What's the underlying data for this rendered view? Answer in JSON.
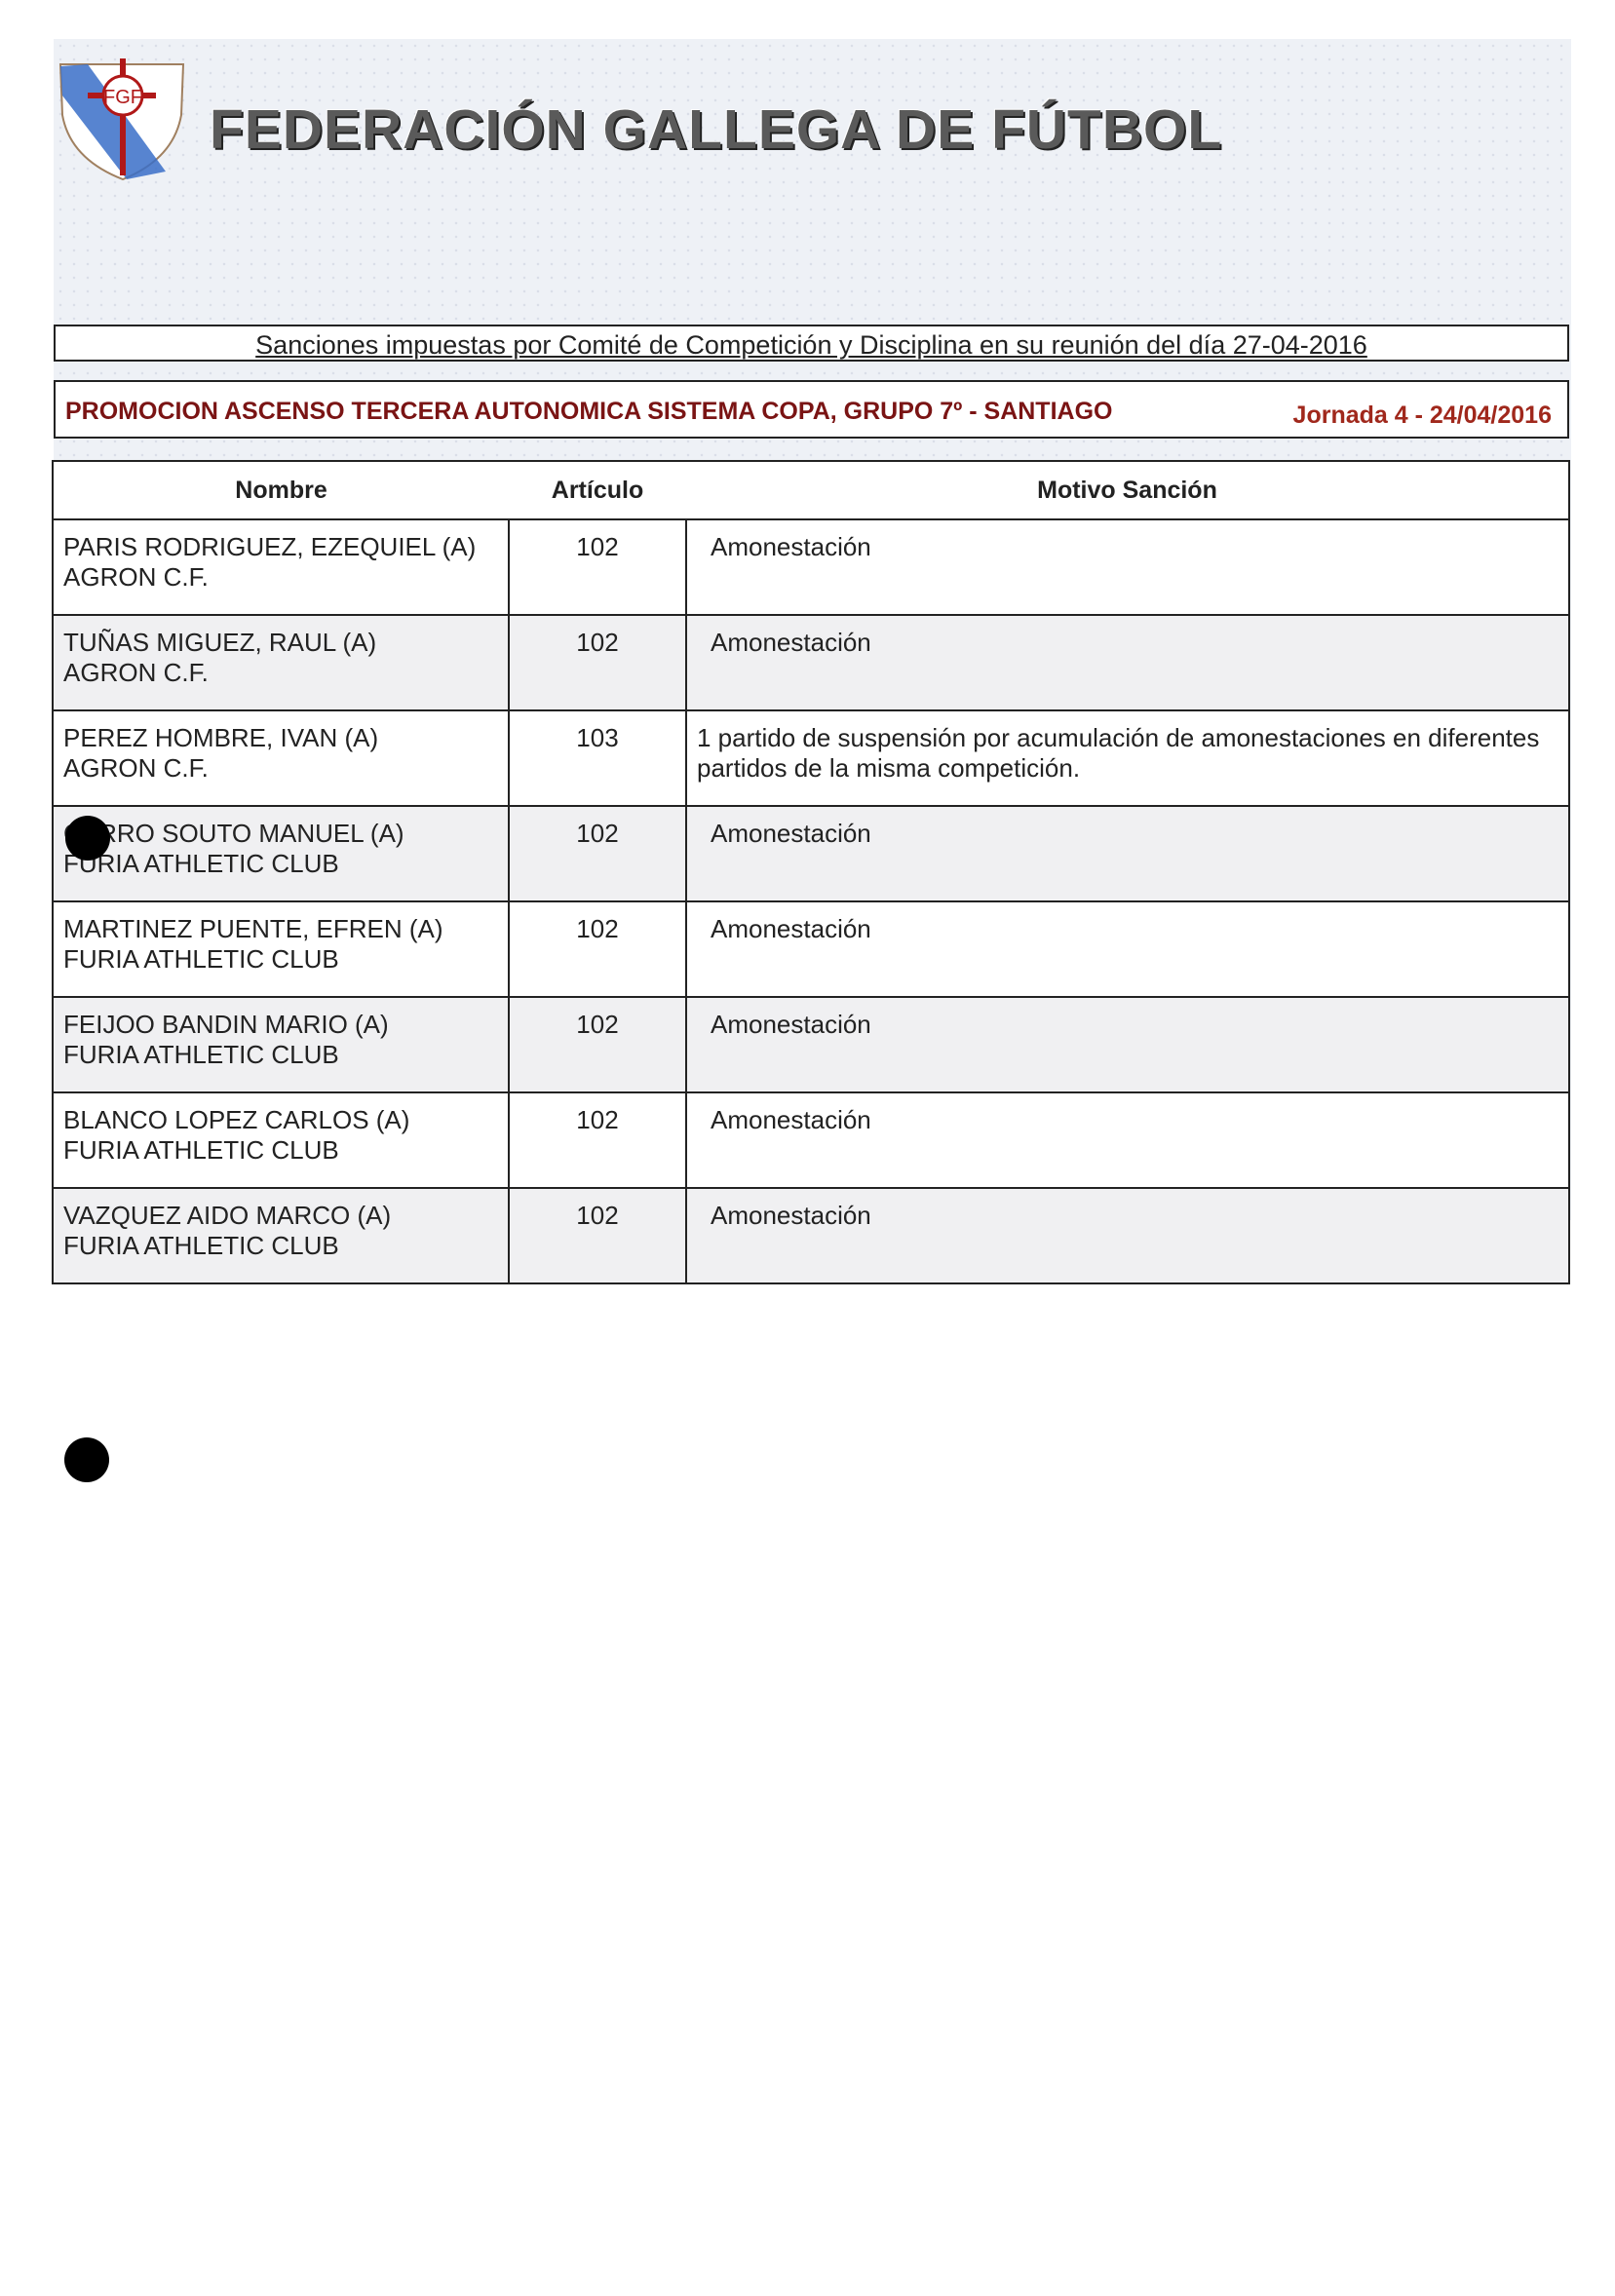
{
  "header": {
    "logo_text": "FGF",
    "title": "FEDERACIÓN GALLEGA DE FÚTBOL"
  },
  "meeting_title": "Sanciones impuestas por Comité de Competición y Disciplina en su reunión del día 27-04-2016",
  "competition": {
    "name": "PROMOCION ASCENSO TERCERA AUTONOMICA SISTEMA COPA,  GRUPO 7º - SANTIAGO",
    "round": "Jornada 4 - 24/04/2016"
  },
  "colors": {
    "competition": "#7a1414",
    "round": "#a0281c"
  },
  "table": {
    "headers": [
      "Nombre",
      "Artículo",
      "Motivo Sanción"
    ],
    "rows": [
      {
        "name": "PARIS RODRIGUEZ, EZEQUIEL (A)",
        "club": "AGRON C.F.",
        "article": "102",
        "reason": "Amonestación"
      },
      {
        "name": "TUÑAS MIGUEZ, RAUL (A)",
        "club": "AGRON C.F.",
        "article": "102",
        "reason": "Amonestación"
      },
      {
        "name": "PEREZ HOMBRE, IVAN (A)",
        "club": "AGRON C.F.",
        "article": "103",
        "reason": "1 partido de suspensión por acumulación de amonestaciones en diferentes partidos de la misma competición."
      },
      {
        "name": "CARRO SOUTO MANUEL (A)",
        "club": "FURIA ATHLETIC CLUB",
        "article": "102",
        "reason": "Amonestación"
      },
      {
        "name": "MARTINEZ PUENTE, EFREN (A)",
        "club": "FURIA ATHLETIC CLUB",
        "article": "102",
        "reason": "Amonestación"
      },
      {
        "name": "FEIJOO BANDIN MARIO (A)",
        "club": "FURIA ATHLETIC CLUB",
        "article": "102",
        "reason": "Amonestación"
      },
      {
        "name": "BLANCO LOPEZ CARLOS (A)",
        "club": "FURIA ATHLETIC CLUB",
        "article": "102",
        "reason": "Amonestación"
      },
      {
        "name": "VAZQUEZ AIDO MARCO (A)",
        "club": "FURIA ATHLETIC CLUB",
        "article": "102",
        "reason": "Amonestación"
      }
    ]
  }
}
